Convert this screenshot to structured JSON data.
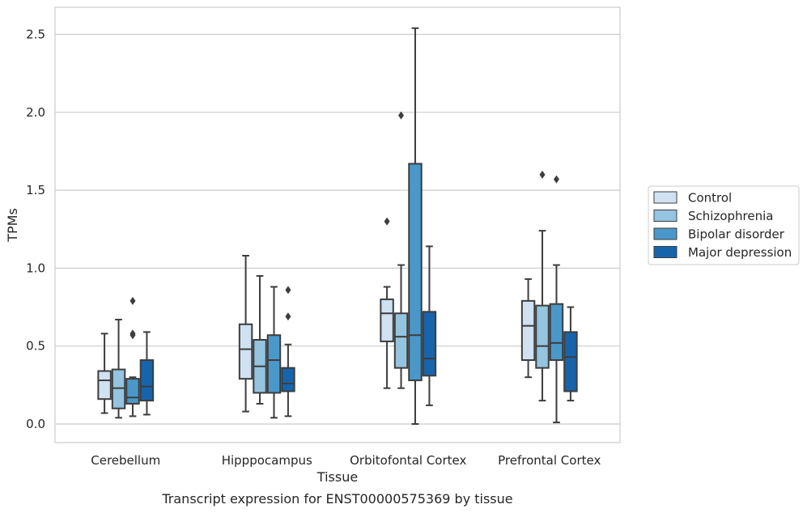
{
  "chart_data": {
    "type": "box",
    "xlabel": "Tissue",
    "ylabel": "TPMs",
    "caption": "Transcript expression for ENST00000575369 by tissue",
    "ylim": [
      -0.12,
      2.67
    ],
    "yticks": [
      0.0,
      0.5,
      1.0,
      1.5,
      2.0,
      2.5
    ],
    "ytick_labels": [
      "0.0",
      "0.5",
      "1.0",
      "1.5",
      "2.0",
      "2.5"
    ],
    "grid": true,
    "legend_position": "right",
    "categories": [
      "Cerebellum",
      "Hipppocampus",
      "Orbitofontal Cortex",
      "Prefrontal Cortex"
    ],
    "series": [
      {
        "name": "Control",
        "color": "#d0e1f2",
        "boxes": [
          {
            "whislo": 0.07,
            "q1": 0.16,
            "med": 0.28,
            "q3": 0.34,
            "whishi": 0.58,
            "fliers": []
          },
          {
            "whislo": 0.08,
            "q1": 0.29,
            "med": 0.48,
            "q3": 0.64,
            "whishi": 1.08,
            "fliers": []
          },
          {
            "whislo": 0.23,
            "q1": 0.53,
            "med": 0.71,
            "q3": 0.8,
            "whishi": 0.88,
            "fliers": [
              1.3
            ]
          },
          {
            "whislo": 0.3,
            "q1": 0.41,
            "med": 0.63,
            "q3": 0.79,
            "whishi": 0.93,
            "fliers": []
          }
        ]
      },
      {
        "name": "Schizophrenia",
        "color": "#94c4df",
        "boxes": [
          {
            "whislo": 0.04,
            "q1": 0.1,
            "med": 0.23,
            "q3": 0.35,
            "whishi": 0.67,
            "fliers": []
          },
          {
            "whislo": 0.13,
            "q1": 0.2,
            "med": 0.37,
            "q3": 0.54,
            "whishi": 0.95,
            "fliers": []
          },
          {
            "whislo": 0.23,
            "q1": 0.36,
            "med": 0.56,
            "q3": 0.71,
            "whishi": 1.02,
            "fliers": [
              1.98
            ]
          },
          {
            "whislo": 0.15,
            "q1": 0.36,
            "med": 0.5,
            "q3": 0.76,
            "whishi": 1.24,
            "fliers": [
              1.6
            ]
          }
        ]
      },
      {
        "name": "Bipolar disorder",
        "color": "#4a98c9",
        "boxes": [
          {
            "whislo": 0.05,
            "q1": 0.13,
            "med": 0.17,
            "q3": 0.29,
            "whishi": 0.3,
            "fliers": [
              0.57,
              0.58,
              0.79
            ]
          },
          {
            "whislo": 0.04,
            "q1": 0.2,
            "med": 0.41,
            "q3": 0.57,
            "whishi": 0.88,
            "fliers": []
          },
          {
            "whislo": 0.0,
            "q1": 0.28,
            "med": 0.57,
            "q3": 1.67,
            "whishi": 2.54,
            "fliers": []
          },
          {
            "whislo": 0.01,
            "q1": 0.41,
            "med": 0.52,
            "q3": 0.77,
            "whishi": 1.02,
            "fliers": [
              1.57
            ]
          }
        ]
      },
      {
        "name": "Major depression",
        "color": "#1764ab",
        "boxes": [
          {
            "whislo": 0.06,
            "q1": 0.15,
            "med": 0.24,
            "q3": 0.41,
            "whishi": 0.59,
            "fliers": []
          },
          {
            "whislo": 0.05,
            "q1": 0.21,
            "med": 0.26,
            "q3": 0.36,
            "whishi": 0.51,
            "fliers": [
              0.69,
              0.86
            ]
          },
          {
            "whislo": 0.12,
            "q1": 0.31,
            "med": 0.42,
            "q3": 0.72,
            "whishi": 1.14,
            "fliers": []
          },
          {
            "whislo": 0.15,
            "q1": 0.21,
            "med": 0.43,
            "q3": 0.59,
            "whishi": 0.75,
            "fliers": []
          }
        ]
      }
    ]
  }
}
